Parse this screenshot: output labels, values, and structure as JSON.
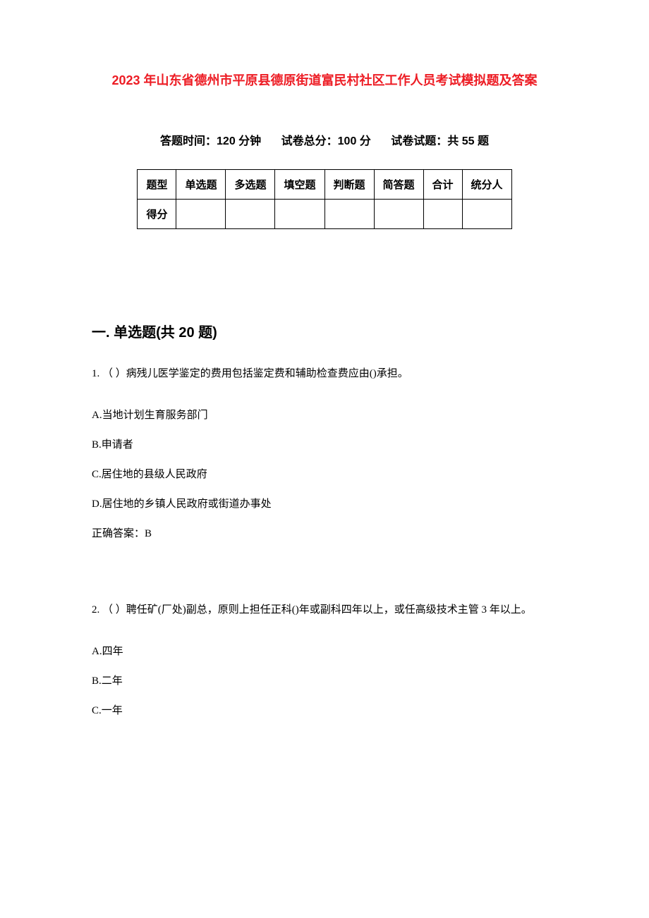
{
  "title": "2023 年山东省德州市平原县德原街道富民村社区工作人员考试模拟题及答案",
  "exam_info": {
    "duration": "答题时间：120 分钟",
    "total_score": "试卷总分：100 分",
    "total_questions": "试卷试题：共 55 题"
  },
  "score_table": {
    "headers": [
      "题型",
      "单选题",
      "多选题",
      "填空题",
      "判断题",
      "简答题",
      "合计",
      "统分人"
    ],
    "row_label": "得分",
    "border_color": "#000000",
    "font_size": 15
  },
  "section_heading": "一. 单选题(共 20 题)",
  "questions": [
    {
      "number": "1.",
      "text": "（ ）病残儿医学鉴定的费用包括鉴定费和辅助检查费应由()承担。",
      "options": [
        "A.当地计划生育服务部门",
        "B.申请者",
        "C.居住地的县级人民政府",
        "D.居住地的乡镇人民政府或街道办事处"
      ],
      "answer": "正确答案：B"
    },
    {
      "number": "2.",
      "text": "（ ）聘任矿(厂处)副总，原则上担任正科()年或副科四年以上，或任高级技术主管 3 年以上。",
      "options": [
        "A.四年",
        "B.二年",
        "C.一年"
      ],
      "answer": ""
    }
  ],
  "colors": {
    "title_color": "#ed1c24",
    "text_color": "#000000",
    "background_color": "#ffffff"
  }
}
